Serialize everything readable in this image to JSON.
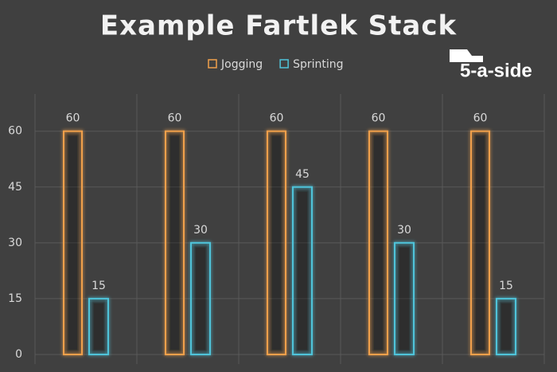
{
  "chart_data": {
    "type": "bar",
    "title": "Example Fartlek Stack",
    "categories": [
      null,
      null,
      null,
      null,
      null
    ],
    "series": [
      {
        "name": "Jogging",
        "color": "#f0a04b",
        "values": [
          60,
          60,
          60,
          60,
          60
        ]
      },
      {
        "name": "Sprinting",
        "color": "#4fc3d9",
        "values": [
          15,
          30,
          45,
          30,
          15
        ]
      }
    ],
    "ylim": [
      0,
      70
    ],
    "yticks": [
      0,
      15,
      30,
      45,
      60
    ],
    "grid": true,
    "legend": "top"
  },
  "logo": {
    "text": "5-a-side"
  }
}
